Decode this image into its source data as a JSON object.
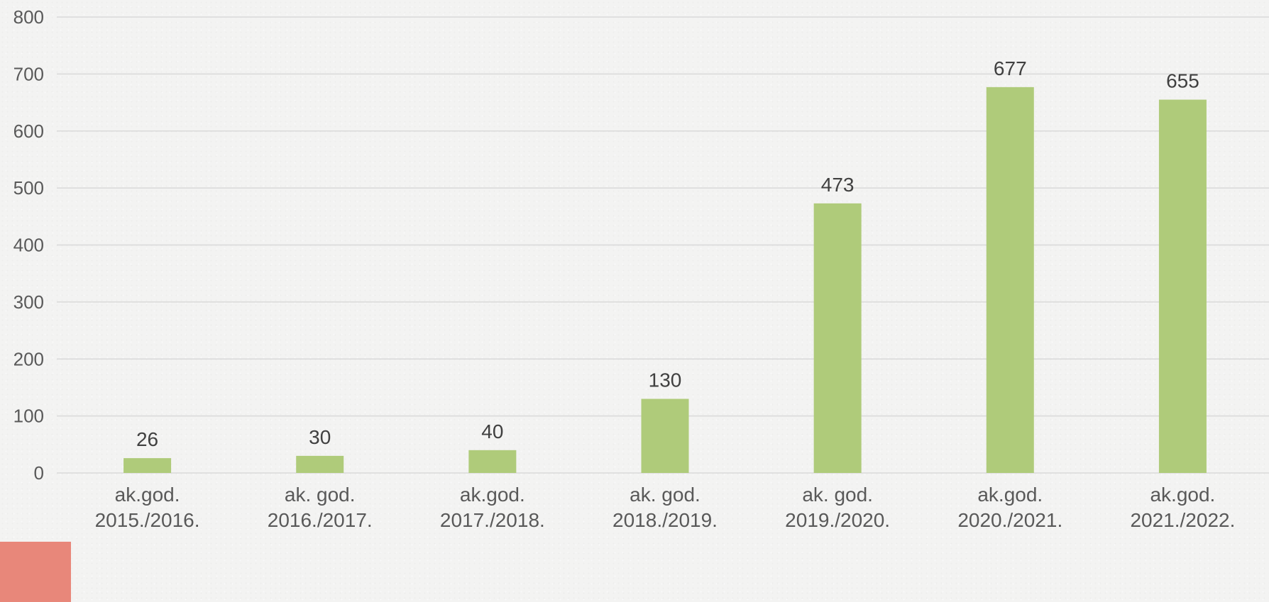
{
  "colors": {
    "bar": "#afcb7a",
    "background": "#f3f3f2",
    "corner_block": "#e8877a"
  },
  "chart_data": {
    "type": "bar",
    "categories": [
      [
        "ak.god.",
        "2015./2016."
      ],
      [
        "ak. god.",
        "2016./2017."
      ],
      [
        "ak.god.",
        "2017./2018."
      ],
      [
        "ak. god.",
        "2018./2019."
      ],
      [
        "ak. god.",
        "2019./2020."
      ],
      [
        "ak.god.",
        "2020./2021."
      ],
      [
        "ak.god.",
        "2021./2022."
      ]
    ],
    "values": [
      26,
      30,
      40,
      130,
      473,
      677,
      655
    ],
    "data_labels": [
      "26",
      "30",
      "40",
      "130",
      "473",
      "677",
      "655"
    ],
    "ylim": [
      0,
      800
    ],
    "yticks": [
      0,
      100,
      200,
      300,
      400,
      500,
      600,
      700,
      800
    ],
    "grid": true,
    "legend": "none"
  }
}
